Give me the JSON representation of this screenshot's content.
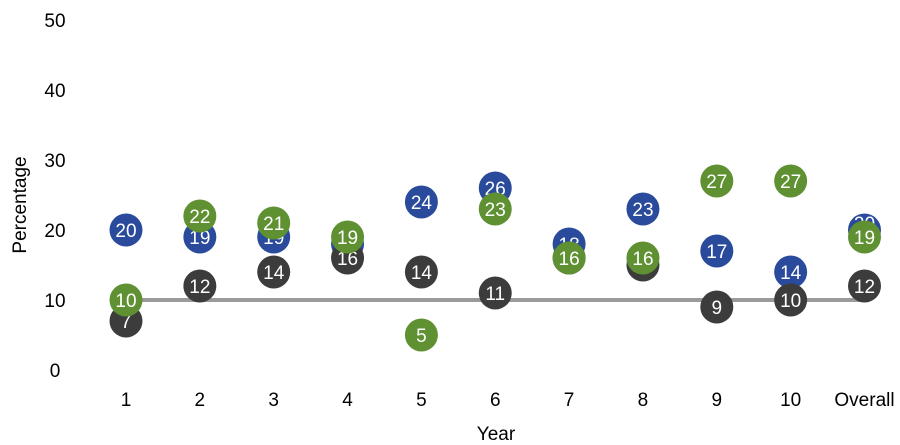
{
  "chart_data": {
    "type": "scatter",
    "xlabel": "Year",
    "ylabel": "Percentage",
    "ylim": [
      0,
      50
    ],
    "yticks": [
      0,
      10,
      20,
      30,
      40,
      50
    ],
    "categories": [
      "1",
      "2",
      "3",
      "4",
      "5",
      "6",
      "7",
      "8",
      "9",
      "10",
      "Overall"
    ],
    "reference_line": {
      "value": 10,
      "color": "#9a9a9a"
    },
    "grid": false,
    "legend": "none",
    "series": [
      {
        "color": "#2a4b9b",
        "values": [
          20,
          19,
          19,
          18,
          24,
          26,
          18,
          23,
          17,
          14,
          20
        ],
        "label_y": [
          20,
          19,
          19,
          18,
          24,
          26,
          18,
          23,
          17,
          14,
          21
        ]
      },
      {
        "color": "#3c3c3c",
        "values": [
          7,
          12,
          14,
          16,
          14,
          11,
          16,
          15,
          9,
          10,
          12
        ],
        "label_y": [
          7,
          12,
          14,
          16,
          14,
          11,
          16,
          15,
          9,
          10,
          12
        ]
      },
      {
        "color": "#5f9133",
        "values": [
          10,
          22,
          21,
          19,
          5,
          23,
          16,
          16,
          27,
          27,
          19
        ],
        "label_y": [
          10,
          22,
          21,
          19,
          5,
          23,
          16,
          16,
          27,
          27,
          19
        ]
      }
    ]
  }
}
